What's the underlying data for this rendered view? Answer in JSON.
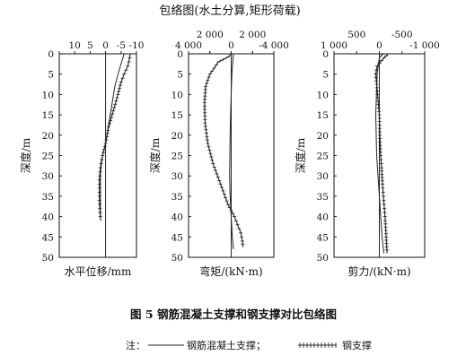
{
  "figure": {
    "top_title": "包络图(水土分算,矩形荷载)",
    "caption": "图 5   钢筋混凝土支撑和钢支撑对比包络图",
    "note_prefix": "注：",
    "legend_rc": "钢筋混凝土支撑；",
    "legend_steel": "钢支撑"
  },
  "chart_data": [
    {
      "type": "line",
      "xlabel": "水平位移/mm",
      "ylabel": "深度/m",
      "xlim": [
        15,
        -10
      ],
      "xticks": [
        15,
        10,
        5,
        0,
        -5,
        -10
      ],
      "xtick_labels": [
        "",
        "10",
        "5",
        "0",
        "-5",
        "-10"
      ],
      "ylim": [
        0,
        50
      ],
      "yticks": [
        0,
        5,
        10,
        15,
        20,
        25,
        30,
        35,
        40,
        45,
        50
      ],
      "series": [
        {
          "name": "钢筋混凝土支撑",
          "style": "solid",
          "x": [
            -6,
            -4,
            -3,
            -1.5,
            0,
            1,
            1.5,
            1.7,
            1.7,
            1.7,
            1.7,
            1.6
          ],
          "y": [
            0,
            5,
            8,
            15,
            22,
            25,
            28,
            30,
            33,
            36,
            39,
            41
          ]
        },
        {
          "name": "钢支撑",
          "style": "dotted",
          "x": [
            -8,
            -7.8,
            -7.2,
            -6,
            -5,
            -4,
            -2.5,
            -1,
            0,
            1,
            1.5,
            1.8,
            2,
            2,
            2,
            1.8,
            1.6
          ],
          "y": [
            0,
            1,
            3,
            5,
            7,
            10,
            14,
            18,
            22,
            25,
            27,
            29,
            31,
            33,
            36,
            39,
            41
          ]
        }
      ]
    },
    {
      "type": "line",
      "xlabel": "弯矩/(kN·m)",
      "ylabel": "深度/m",
      "xlim": [
        4000,
        -4000
      ],
      "xticks_bottom": [
        4000,
        2000,
        0,
        -2000,
        -4000
      ],
      "xtick_labels_bottom": [
        "4 000",
        "",
        "0",
        "",
        "-4 000"
      ],
      "xticks_top": [
        2000,
        -2000
      ],
      "xtick_labels_top": [
        "2 000",
        "2 000"
      ],
      "ylim": [
        0,
        50
      ],
      "yticks": [
        0,
        5,
        10,
        15,
        20,
        25,
        30,
        35,
        40,
        45,
        50
      ],
      "series": [
        {
          "name": "钢筋混凝土支撑",
          "style": "solid",
          "x": [
            -200,
            -60,
            0,
            60,
            100,
            130,
            150,
            100,
            0,
            -100,
            -200
          ],
          "y": [
            0,
            5,
            10,
            15,
            20,
            25,
            30,
            35,
            40,
            45,
            48
          ]
        },
        {
          "name": "钢支撑",
          "style": "dotted",
          "x": [
            0,
            300,
            1200,
            2000,
            2400,
            2500,
            2450,
            2200,
            1700,
            1000,
            300,
            -300,
            -600,
            -900,
            -1050,
            -1100
          ],
          "y": [
            0,
            0.8,
            2,
            5,
            8,
            12,
            17,
            22,
            27,
            32,
            37,
            40,
            42,
            44,
            46,
            47.5
          ]
        }
      ]
    },
    {
      "type": "line",
      "xlabel": "剪力/(kN·m)",
      "ylabel": "深度/m",
      "xlim": [
        1000,
        -1000
      ],
      "xticks_bottom": [
        1000,
        0,
        -1000
      ],
      "xtick_labels_bottom": [
        "1 000",
        "0",
        "-1 000"
      ],
      "xticks_top": [
        500,
        -500
      ],
      "xtick_labels_top": [
        "500",
        "-500"
      ],
      "ylim": [
        0,
        50
      ],
      "yticks": [
        0,
        5,
        10,
        15,
        20,
        25,
        30,
        35,
        40,
        45,
        50
      ],
      "series": [
        {
          "name": "钢筋混凝土支撑",
          "style": "solid",
          "x": [
            -100,
            -50,
            0,
            50,
            80,
            60,
            0,
            -60,
            -100
          ],
          "y": [
            0,
            0.3,
            1,
            5,
            15,
            25,
            35,
            45,
            49
          ]
        },
        {
          "name": "钢支撑",
          "style": "dotted",
          "x": [
            -200,
            -100,
            50,
            80,
            40,
            0,
            -10,
            -30,
            -50,
            -70,
            -90,
            -110,
            -130,
            -150,
            -170
          ],
          "y": [
            0,
            1,
            3,
            5,
            10,
            15,
            20,
            25,
            28,
            32,
            35,
            38,
            41,
            45,
            49
          ]
        }
      ]
    }
  ]
}
